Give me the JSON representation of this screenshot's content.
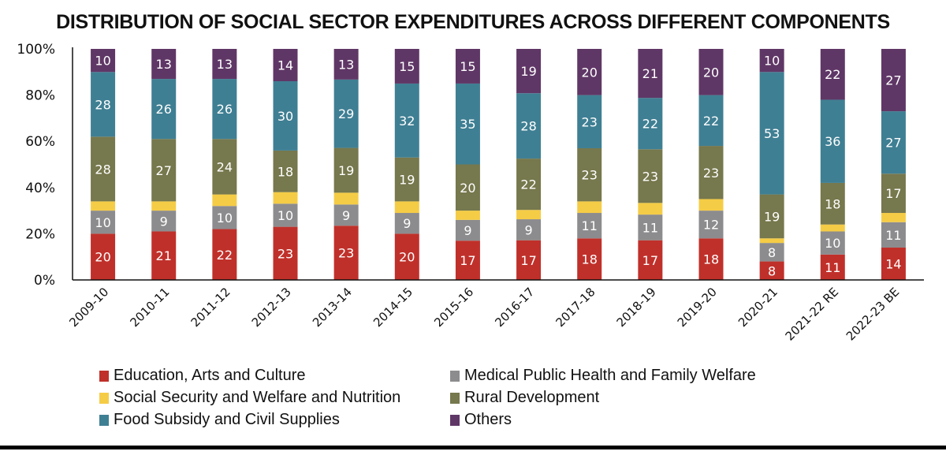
{
  "chart_data": {
    "type": "bar",
    "stacked": true,
    "title": "DISTRIBUTION OF SOCIAL SECTOR EXPENDITURES ACROSS DIFFERENT COMPONENTS",
    "xlabel": "",
    "ylabel": "",
    "ylim": [
      0,
      100
    ],
    "yticks": [
      "0%",
      "20%",
      "40%",
      "60%",
      "80%",
      "100%"
    ],
    "grid": false,
    "legend_position": "bottom",
    "categories": [
      "2009-10",
      "2010-11",
      "2011-12",
      "2012-13",
      "2013-14",
      "2014-15",
      "2015-16",
      "2016-17",
      "2017-18",
      "2018-19",
      "2019-20",
      "2020-21",
      "2021-22 RE",
      "2022-23 BE"
    ],
    "series": [
      {
        "name": "Education, Arts and Culture",
        "color": "#c0302a",
        "show_labels": true,
        "values": [
          20,
          21,
          22,
          23,
          23,
          20,
          17,
          17,
          18,
          17,
          18,
          8,
          11,
          14
        ]
      },
      {
        "name": "Medical Public Health and Family Welfare",
        "color": "#8c8c8e",
        "show_labels": true,
        "values": [
          10,
          9,
          10,
          10,
          9,
          9,
          9,
          9,
          11,
          11,
          12,
          8,
          10,
          11
        ]
      },
      {
        "name": "Social Security and Welfare and Nutrition",
        "color": "#f5cc45",
        "show_labels": false,
        "values": [
          4,
          4,
          5,
          5,
          5,
          5,
          4,
          4,
          5,
          5,
          5,
          2,
          3,
          4
        ]
      },
      {
        "name": "Rural Development",
        "color": "#76784d",
        "show_labels": true,
        "values": [
          28,
          27,
          24,
          18,
          19,
          19,
          20,
          22,
          23,
          23,
          23,
          19,
          18,
          17
        ]
      },
      {
        "name": "Food Subsidy and Civil Supplies",
        "color": "#3f7f93",
        "show_labels": true,
        "values": [
          28,
          26,
          26,
          30,
          29,
          32,
          35,
          28,
          23,
          22,
          22,
          53,
          36,
          27
        ]
      },
      {
        "name": "Others",
        "color": "#5f3766",
        "show_labels": true,
        "values": [
          10,
          13,
          13,
          14,
          13,
          15,
          15,
          19,
          20,
          21,
          20,
          10,
          22,
          27
        ]
      }
    ]
  },
  "legend": {
    "items": [
      {
        "label": "Education, Arts and Culture",
        "color": "#c0302a"
      },
      {
        "label": "Medical Public Health and Family Welfare",
        "color": "#8c8c8e"
      },
      {
        "label": "Social Security and Welfare and Nutrition",
        "color": "#f5cc45"
      },
      {
        "label": "Rural Development",
        "color": "#76784d"
      },
      {
        "label": "Food Subsidy and Civil Supplies",
        "color": "#3f7f93"
      },
      {
        "label": "Others",
        "color": "#5f3766"
      }
    ]
  }
}
